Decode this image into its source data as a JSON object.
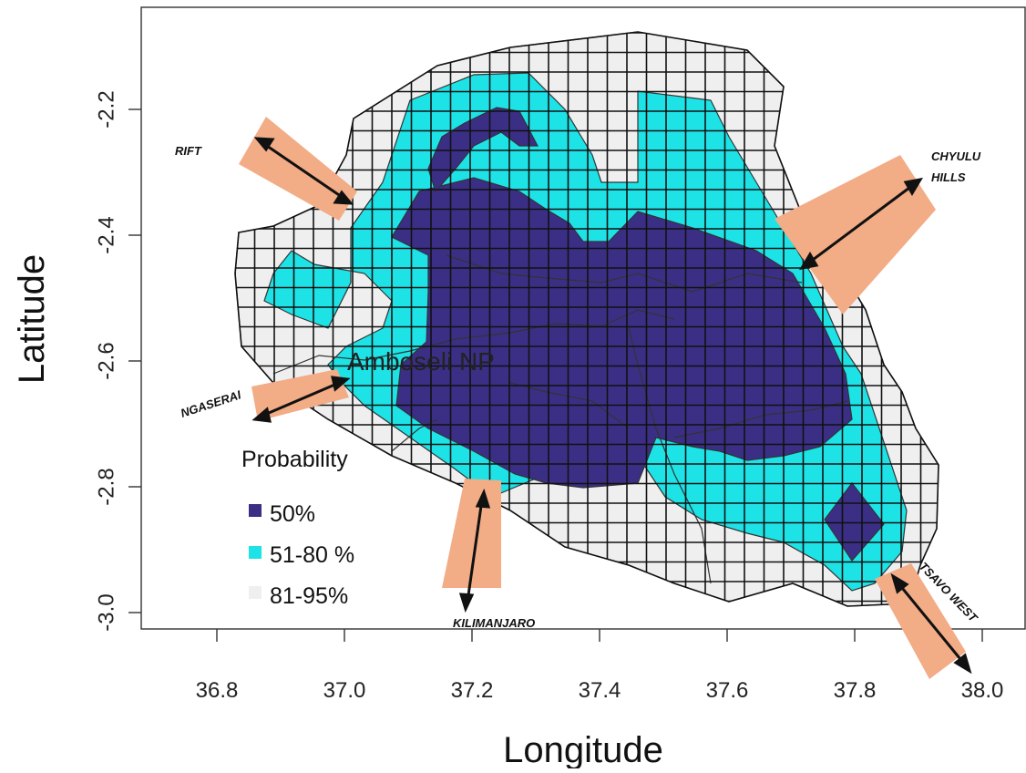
{
  "axes": {
    "xlabel": "Longitude",
    "ylabel": "Latitude",
    "xlim": [
      36.67,
      38.07
    ],
    "ylim": [
      -3.05,
      -2.05
    ],
    "x_ticks": [
      "36.8",
      "37.0",
      "37.2",
      "37.4",
      "37.6",
      "37.8",
      "38.0"
    ],
    "y_ticks": [
      "-2.2",
      "-2.4",
      "-2.6",
      "-2.8",
      "-3.0"
    ]
  },
  "park_label": "Amboseli NP",
  "legend": {
    "title": "Probability",
    "items": [
      {
        "label": "50%",
        "color": "#3b2f85"
      },
      {
        "label": "51-80 %",
        "color": "#1de3e6"
      },
      {
        "label": "81-95%",
        "color": "#efefef"
      }
    ]
  },
  "corridors": [
    {
      "name": "RIFT",
      "lon": 36.95,
      "lat": -2.3
    },
    {
      "name": "CHYULU HILLS",
      "lon": 37.82,
      "lat": -2.38
    },
    {
      "name": "NGASERAI",
      "lon": 36.93,
      "lat": -2.66
    },
    {
      "name": "KILIMANJARO",
      "lon": 37.21,
      "lat": -2.89
    },
    {
      "name": "TSAVO WEST",
      "lon": 37.92,
      "lat": -2.99
    }
  ],
  "colors": {
    "core": "#3b2f85",
    "mid": "#1de3e6",
    "outer": "#efefef",
    "corridor": "#f2ac86",
    "grid": "#111111"
  }
}
